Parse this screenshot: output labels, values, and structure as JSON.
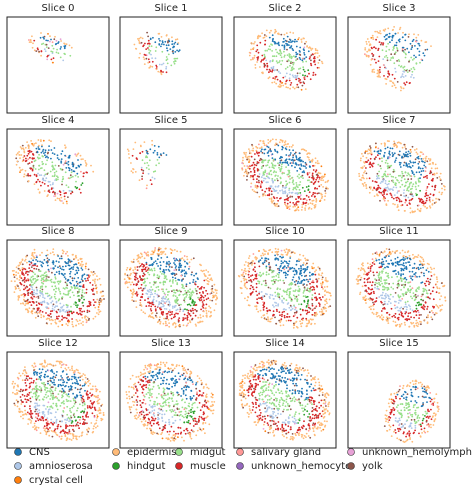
{
  "chart_data": {
    "type": "spatial-scatter-grid",
    "panels": [
      "Slice 0",
      "Slice 1",
      "Slice 2",
      "Slice 3",
      "Slice 4",
      "Slice 5",
      "Slice 6",
      "Slice 7",
      "Slice 8",
      "Slice 9",
      "Slice 10",
      "Slice 11",
      "Slice 12",
      "Slice 13",
      "Slice 14",
      "Slice 15"
    ],
    "legend": [
      {
        "name": "CNS",
        "color": "#1f77b4"
      },
      {
        "name": "amnioserosa",
        "color": "#aec7e8"
      },
      {
        "name": "crystal cell",
        "color": "#ff7f0e"
      },
      {
        "name": "epidermis",
        "color": "#ffbb78"
      },
      {
        "name": "hindgut",
        "color": "#2ca02c"
      },
      {
        "name": "midgut",
        "color": "#98df8a"
      },
      {
        "name": "muscle",
        "color": "#d62728"
      },
      {
        "name": "salivary gland",
        "color": "#ff9896"
      },
      {
        "name": "unknown_hemocyte",
        "color": "#9467bd"
      },
      {
        "name": "unknown_hemolymph",
        "color": "#e7a1d6"
      },
      {
        "name": "yolk",
        "color": "#8c564b"
      }
    ]
  }
}
